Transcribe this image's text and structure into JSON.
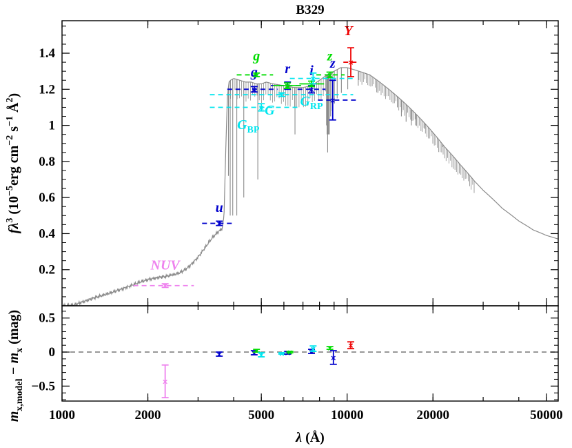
{
  "chart_data": {
    "type": "scatter",
    "title": "B329",
    "xscale": "log",
    "xlim": [
      1000,
      55000
    ],
    "top_panel": {
      "ylabel_parts": [
        "fλ",
        "3",
        " (10",
        "−5",
        "erg cm",
        "−2",
        " s",
        "−1",
        " Å",
        "2",
        ")"
      ],
      "ylim": [
        0,
        1.58
      ],
      "yticks": [
        0.2,
        0.4,
        0.6,
        0.8,
        1,
        1.2,
        1.4
      ],
      "ytick_labels": [
        "0.2",
        "0.4",
        "0.6",
        "0.8",
        "1",
        "1.2",
        "1.4"
      ],
      "spectrum": [
        [
          1000,
          0.0
        ],
        [
          1100,
          0.005
        ],
        [
          1200,
          0.025
        ],
        [
          1300,
          0.045
        ],
        [
          1400,
          0.06
        ],
        [
          1500,
          0.075
        ],
        [
          1600,
          0.09
        ],
        [
          1700,
          0.105
        ],
        [
          1800,
          0.12
        ],
        [
          1900,
          0.135
        ],
        [
          2000,
          0.145
        ],
        [
          2100,
          0.152
        ],
        [
          2200,
          0.158
        ],
        [
          2300,
          0.162
        ],
        [
          2400,
          0.17
        ],
        [
          2500,
          0.175
        ],
        [
          2600,
          0.185
        ],
        [
          2700,
          0.2
        ],
        [
          2800,
          0.22
        ],
        [
          2900,
          0.245
        ],
        [
          3000,
          0.27
        ],
        [
          3100,
          0.3
        ],
        [
          3200,
          0.33
        ],
        [
          3300,
          0.36
        ],
        [
          3400,
          0.385
        ],
        [
          3500,
          0.405
        ],
        [
          3600,
          0.42
        ],
        [
          3650,
          0.43
        ],
        [
          3700,
          0.5
        ],
        [
          3750,
          0.85
        ],
        [
          3800,
          1.15
        ],
        [
          3850,
          1.24
        ],
        [
          3900,
          1.25
        ],
        [
          4000,
          1.26
        ],
        [
          4200,
          1.25
        ],
        [
          4400,
          1.24
        ],
        [
          4600,
          1.24
        ],
        [
          4800,
          1.23
        ],
        [
          5000,
          1.23
        ],
        [
          5200,
          1.24
        ],
        [
          5500,
          1.23
        ],
        [
          6000,
          1.22
        ],
        [
          6500,
          1.21
        ],
        [
          7000,
          1.21
        ],
        [
          7500,
          1.22
        ],
        [
          8000,
          1.25
        ],
        [
          8500,
          1.28
        ],
        [
          9000,
          1.3
        ],
        [
          9500,
          1.32
        ],
        [
          10000,
          1.32
        ],
        [
          10500,
          1.31
        ],
        [
          11000,
          1.3
        ],
        [
          12000,
          1.28
        ],
        [
          13000,
          1.24
        ],
        [
          14000,
          1.2
        ],
        [
          15000,
          1.16
        ],
        [
          16000,
          1.12
        ],
        [
          18000,
          1.04
        ],
        [
          20000,
          0.96
        ],
        [
          22000,
          0.88
        ],
        [
          25000,
          0.78
        ],
        [
          28000,
          0.69
        ],
        [
          30000,
          0.64
        ],
        [
          35000,
          0.54
        ],
        [
          40000,
          0.47
        ],
        [
          45000,
          0.42
        ],
        [
          50000,
          0.39
        ],
        [
          55000,
          0.37
        ]
      ],
      "absorption_lines": [
        [
          3835,
          0.72
        ],
        [
          3889,
          0.5
        ],
        [
          3970,
          0.5
        ],
        [
          4102,
          0.5
        ],
        [
          4340,
          0.6
        ],
        [
          4861,
          0.7
        ],
        [
          6563,
          0.95
        ],
        [
          8467,
          1.0
        ],
        [
          8502,
          0.95
        ],
        [
          8545,
          0.85
        ],
        [
          8598,
          0.95
        ],
        [
          8665,
          0.95
        ],
        [
          8750,
          1.05
        ],
        [
          8863,
          1.08
        ],
        [
          9015,
          1.12
        ],
        [
          9229,
          1.15
        ],
        [
          9546,
          1.18
        ],
        [
          10049,
          1.2
        ],
        [
          10938,
          1.22
        ],
        [
          12818,
          1.18
        ],
        [
          15000,
          1.1
        ],
        [
          15500,
          1.05
        ],
        [
          16100,
          1.02
        ],
        [
          16800,
          1.0
        ],
        [
          17400,
          1.0
        ],
        [
          18750,
          0.98
        ],
        [
          21655,
          0.88
        ]
      ],
      "photometry": [
        {
          "label": "NUV",
          "color": "#ee82ee",
          "x": 2300,
          "y": 0.112,
          "yerr": 0.01,
          "xerr": [
            1780,
            2900
          ],
          "dashed": true,
          "label_pos": [
            2300,
            0.2
          ],
          "italic": false
        },
        {
          "label": "u",
          "color": "#0000cc",
          "x": 3560,
          "y": 0.457,
          "yerr": 0.012,
          "xerr": [
            3100,
            4000
          ],
          "dashed": true,
          "label_pos": [
            3560,
            0.52
          ],
          "italic": true
        },
        {
          "label": "g",
          "color": "#0000cc",
          "x": 4720,
          "y": 1.2,
          "yerr": 0.015,
          "xerr": [
            3800,
            5700
          ],
          "dashed": true,
          "label_pos": [
            4720,
            1.27
          ],
          "italic": true
        },
        {
          "label": "r",
          "color": "#0000cc",
          "x": 6180,
          "y": 1.22,
          "yerr": 0.02,
          "xerr": [
            5400,
            7000
          ],
          "dashed": true,
          "label_pos": [
            6180,
            1.29
          ],
          "italic": true
        },
        {
          "label": "i",
          "color": "#0000cc",
          "x": 7500,
          "y": 1.2,
          "yerr": 0.02,
          "xerr": [
            6700,
            8400
          ],
          "dashed": true,
          "label_pos": [
            7500,
            1.28
          ],
          "italic": true
        },
        {
          "label": "z",
          "color": "#0000cc",
          "x": 8900,
          "y": 1.14,
          "yerr": 0.11,
          "xerr": [
            7900,
            11000
          ],
          "dashed": true,
          "label_pos": [
            8900,
            1.32
          ],
          "italic": true
        },
        {
          "label": "g",
          "color": "#00dd00",
          "x": 4810,
          "y": 1.28,
          "yerr": 0.01,
          "xerr": [
            4100,
            5500
          ],
          "dashed": true,
          "label_pos": [
            4810,
            1.36
          ],
          "italic": true
        },
        {
          "label": "r",
          "color": "#00dd00",
          "x": 6170,
          "y": 1.22,
          "yerr": 0.015,
          "xerr": [
            5500,
            6900
          ],
          "dashed": false,
          "label_pos": null,
          "italic": true
        },
        {
          "label": "i",
          "color": "#00dd00",
          "x": 7500,
          "y": 1.23,
          "yerr": 0.015,
          "xerr": [
            6800,
            8300
          ],
          "dashed": false,
          "label_pos": null,
          "italic": true
        },
        {
          "label": "z",
          "color": "#00dd00",
          "x": 8700,
          "y": 1.28,
          "yerr": 0.015,
          "xerr": [
            7800,
            9800
          ],
          "dashed": true,
          "label_pos": [
            8700,
            1.36
          ],
          "italic": true
        },
        {
          "label": "Y",
          "color": "#ee0000",
          "x": 10300,
          "y": 1.35,
          "yerr": 0.08,
          "xerr": [
            9700,
            11000
          ],
          "dashed": true,
          "label_pos": [
            10100,
            1.5
          ],
          "italic": true
        },
        {
          "label": "G_BP",
          "color": "#00e5ee",
          "x": 5000,
          "y": 1.1,
          "yerr": 0.02,
          "xerr": [
            3300,
            6700
          ],
          "dashed": true,
          "label_pos": [
            4500,
            0.98
          ],
          "italic": true
        },
        {
          "label": "G",
          "color": "#00e5ee",
          "x": 5900,
          "y": 1.17,
          "yerr": 0.01,
          "xerr": [
            3300,
            10500
          ],
          "dashed": true,
          "label_pos": [
            5350,
            1.06
          ],
          "italic": true
        },
        {
          "label": "G_RP",
          "color": "#00e5ee",
          "x": 7600,
          "y": 1.26,
          "yerr": 0.03,
          "xerr": [
            6300,
            10500
          ],
          "dashed": true,
          "label_pos": [
            7500,
            1.11
          ],
          "italic": true
        }
      ]
    },
    "bottom_panel": {
      "ylabel_parts": [
        "m",
        "x,model",
        " − m",
        "x",
        " (mag)"
      ],
      "ylim": [
        -0.72,
        0.68
      ],
      "yticks": [
        -0.5,
        0,
        0.5
      ],
      "ytick_labels": [
        "−0.5",
        "0",
        "0.5"
      ],
      "zero_line": 0,
      "residuals": [
        {
          "band": "NUV",
          "color": "#ee82ee",
          "x": 2300,
          "y": -0.43,
          "yerr": 0.24
        },
        {
          "band": "u",
          "color": "#0000cc",
          "x": 3560,
          "y": -0.03,
          "yerr": 0.03
        },
        {
          "band": "g",
          "color": "#0000cc",
          "x": 4720,
          "y": -0.01,
          "yerr": 0.03
        },
        {
          "band": "g",
          "color": "#00dd00",
          "x": 4810,
          "y": 0.02,
          "yerr": 0.02
        },
        {
          "band": "G_BP",
          "color": "#00e5ee",
          "x": 5000,
          "y": -0.04,
          "yerr": 0.03
        },
        {
          "band": "G",
          "color": "#00e5ee",
          "x": 5900,
          "y": -0.02,
          "yerr": 0.01
        },
        {
          "band": "r",
          "color": "#0000cc",
          "x": 6180,
          "y": -0.01,
          "yerr": 0.02
        },
        {
          "band": "r",
          "color": "#00dd00",
          "x": 6300,
          "y": 0.0,
          "yerr": 0.01
        },
        {
          "band": "i",
          "color": "#0000cc",
          "x": 7500,
          "y": 0.01,
          "yerr": 0.03
        },
        {
          "band": "G_RP",
          "color": "#00e5ee",
          "x": 7600,
          "y": 0.05,
          "yerr": 0.04
        },
        {
          "band": "z",
          "color": "#00dd00",
          "x": 8700,
          "y": 0.06,
          "yerr": 0.02
        },
        {
          "band": "z",
          "color": "#0000cc",
          "x": 8950,
          "y": -0.08,
          "yerr": 0.1
        },
        {
          "band": "Y",
          "color": "#ee0000",
          "x": 10300,
          "y": 0.1,
          "yerr": 0.05
        }
      ]
    },
    "xticks": [
      1000,
      2000,
      5000,
      10000,
      20000,
      50000
    ],
    "xtick_labels": [
      "1000",
      "2000",
      "5000",
      "10000",
      "20000",
      "50000"
    ],
    "xlabel_parts": [
      "λ",
      " (Å)"
    ]
  }
}
